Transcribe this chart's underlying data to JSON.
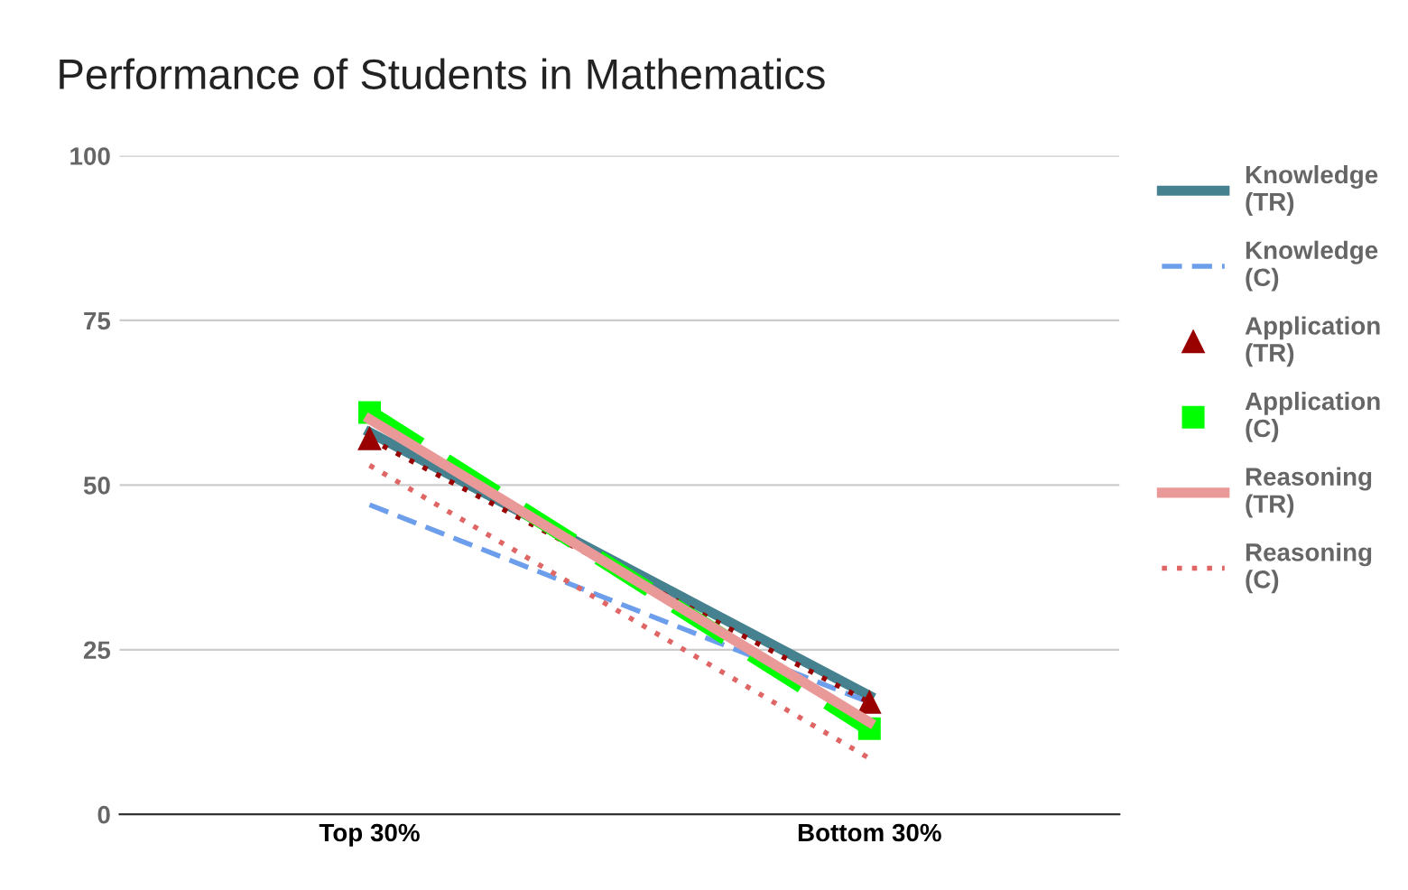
{
  "chart_data": {
    "type": "line",
    "title": "Performance of Students in Mathematics",
    "categories": [
      "Top 30%",
      "Bottom 30%"
    ],
    "ylim": [
      0,
      100
    ],
    "yticks": [
      0,
      25,
      50,
      75,
      100
    ],
    "grid": "y",
    "legend": "right",
    "series": [
      {
        "name": "Knowledge\n(TR)",
        "color": "#45818e",
        "values": [
          58,
          18
        ],
        "line_style": "solid",
        "marker": "none"
      },
      {
        "name": "Knowledge\n(C)",
        "color": "#6d9eeb",
        "values": [
          47,
          17
        ],
        "line_style": "dashed",
        "marker": "none"
      },
      {
        "name": "Application\n(TR)",
        "color": "#990000",
        "values": [
          57,
          17
        ],
        "line_style": "dotted",
        "marker": "triangle"
      },
      {
        "name": "Application\n(C)",
        "color": "#00ff00",
        "values": [
          61,
          13
        ],
        "line_style": "dashed",
        "marker": "square"
      },
      {
        "name": "Reasoning\n(TR)",
        "color": "#ea9999",
        "values": [
          60,
          14
        ],
        "line_style": "solid",
        "marker": "none"
      },
      {
        "name": "Reasoning\n(C)",
        "color": "#e06666",
        "values": [
          53,
          8.5
        ],
        "line_style": "dotted",
        "marker": "none"
      }
    ]
  }
}
